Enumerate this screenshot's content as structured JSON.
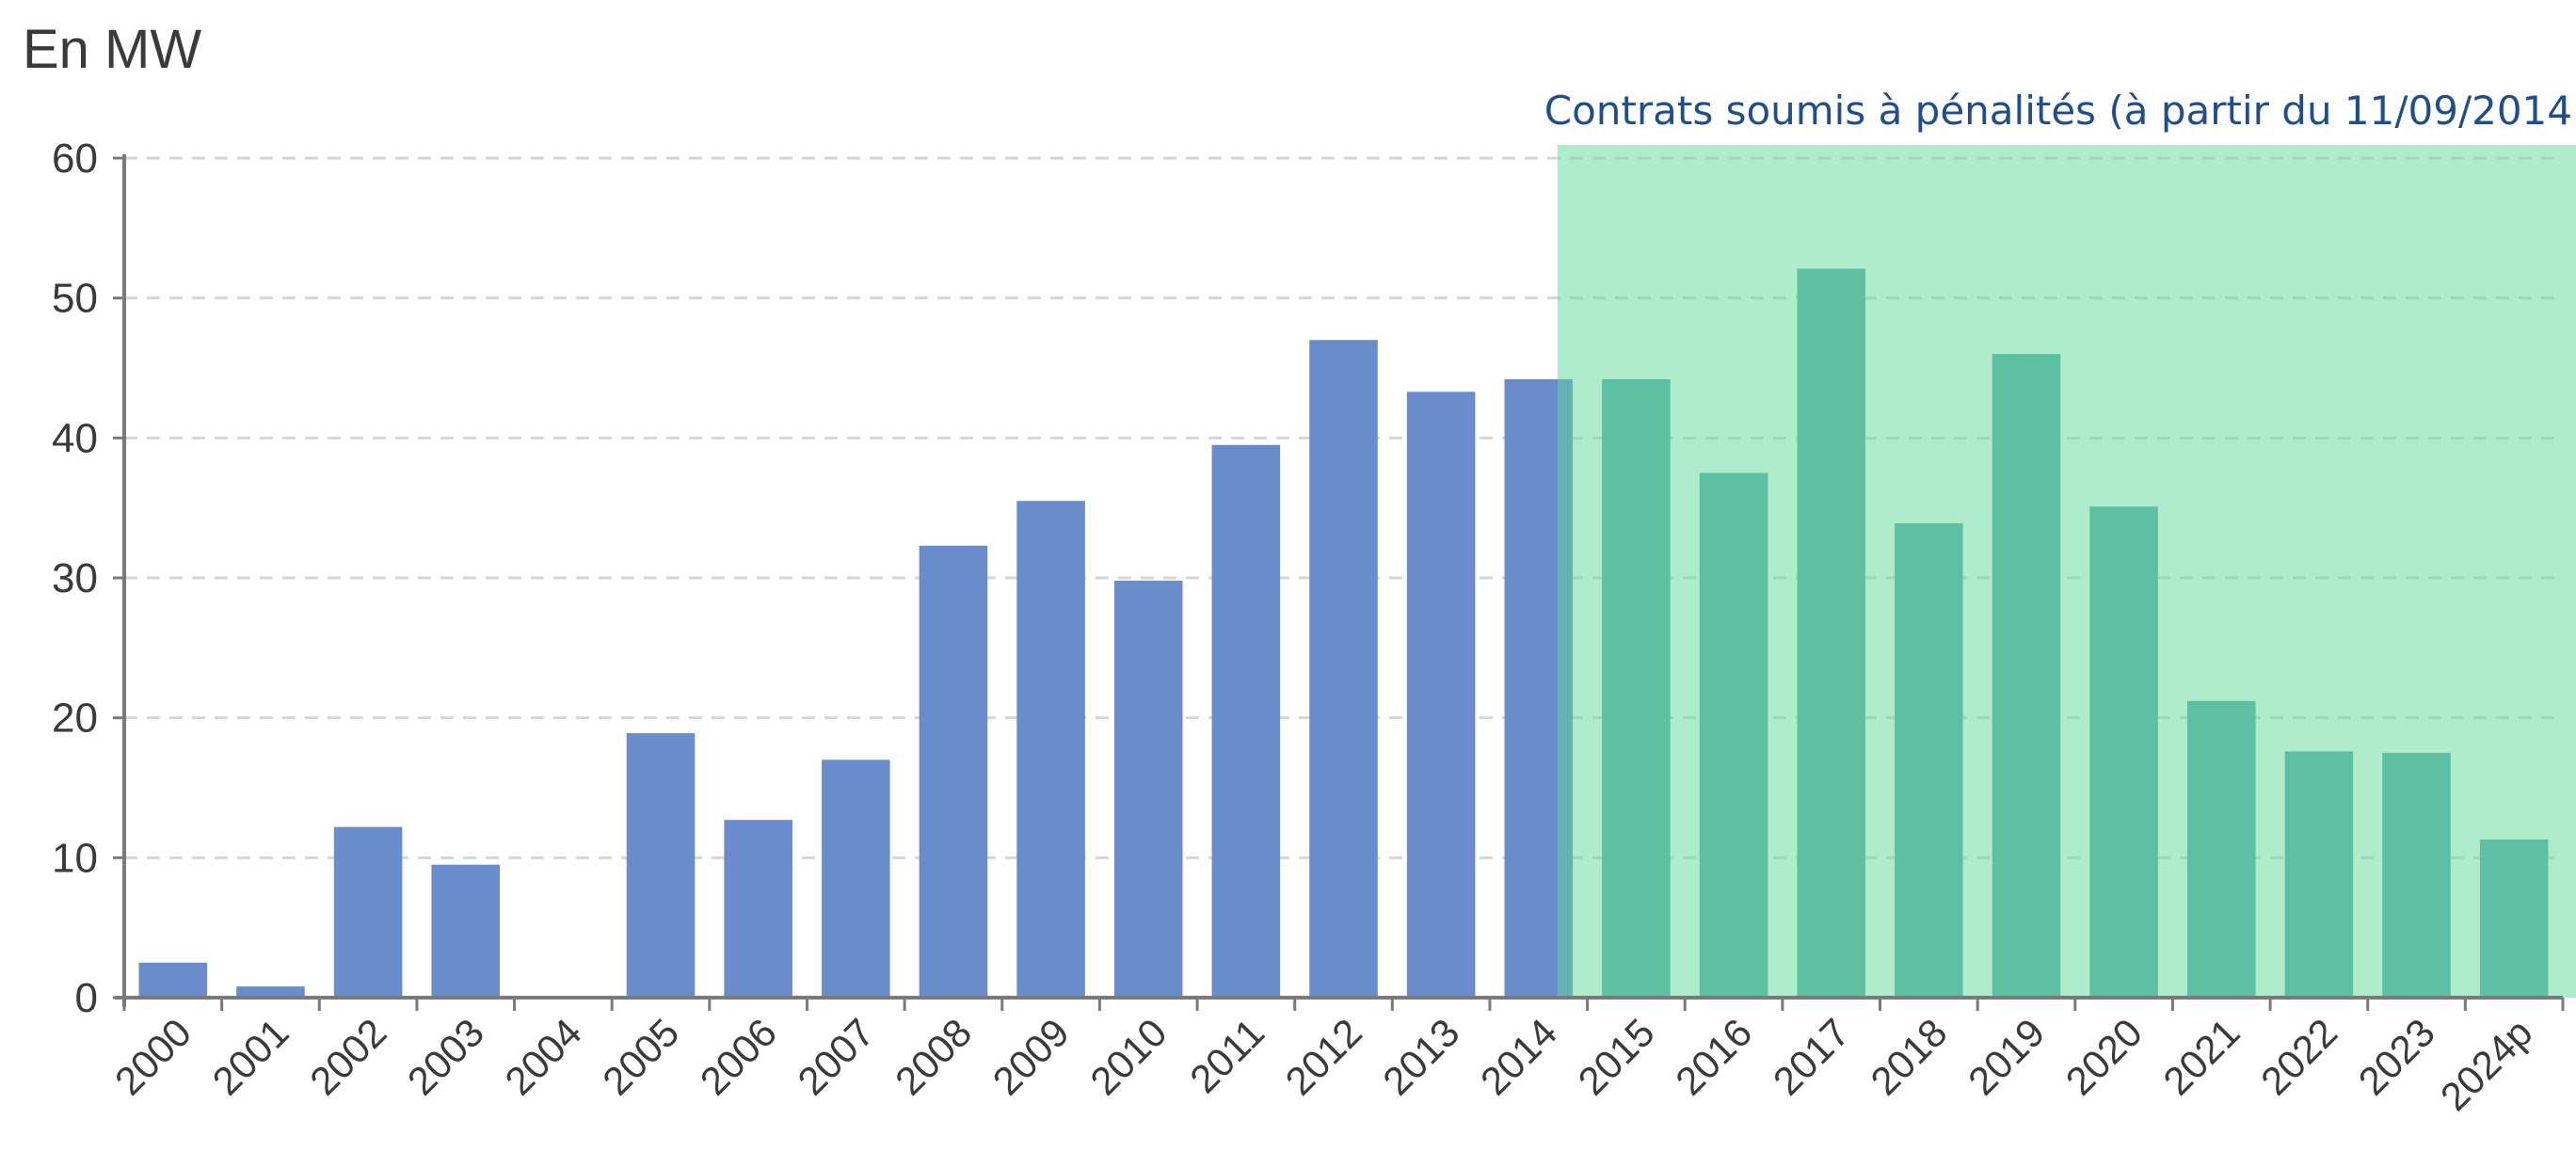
{
  "chart_data": {
    "type": "bar",
    "ylabel": "En MW",
    "ylim": [
      0,
      60
    ],
    "yticks": [
      0,
      10,
      20,
      30,
      40,
      50,
      60
    ],
    "grid": true,
    "categories": [
      "2000",
      "2001",
      "2002",
      "2003",
      "2004",
      "2005",
      "2006",
      "2007",
      "2008",
      "2009",
      "2010",
      "2011",
      "2012",
      "2013",
      "2014",
      "2015",
      "2016",
      "2017",
      "2018",
      "2019",
      "2020",
      "2021",
      "2022",
      "2023",
      "2024p"
    ],
    "values": [
      2.5,
      0.8,
      12.2,
      9.5,
      0,
      18.9,
      12.7,
      17.0,
      32.3,
      35.5,
      29.8,
      39.5,
      47.0,
      43.3,
      44.2,
      44.2,
      37.5,
      52.1,
      33.9,
      46.0,
      35.1,
      21.2,
      17.6,
      17.5,
      11.3
    ],
    "highlight": {
      "label": "Contrats soumis à pénalités (à partir du 11/09/2014",
      "from_date": "2014-09-11",
      "to_category": "2024p",
      "color": "#5fd99a"
    },
    "colors": {
      "bar": "#6a8bcc",
      "bar_highlighted": "#5aa9a9",
      "annotation_text": "#1f4e8c",
      "grid": "#d6d6d6",
      "axis": "#7a7a7a"
    }
  }
}
